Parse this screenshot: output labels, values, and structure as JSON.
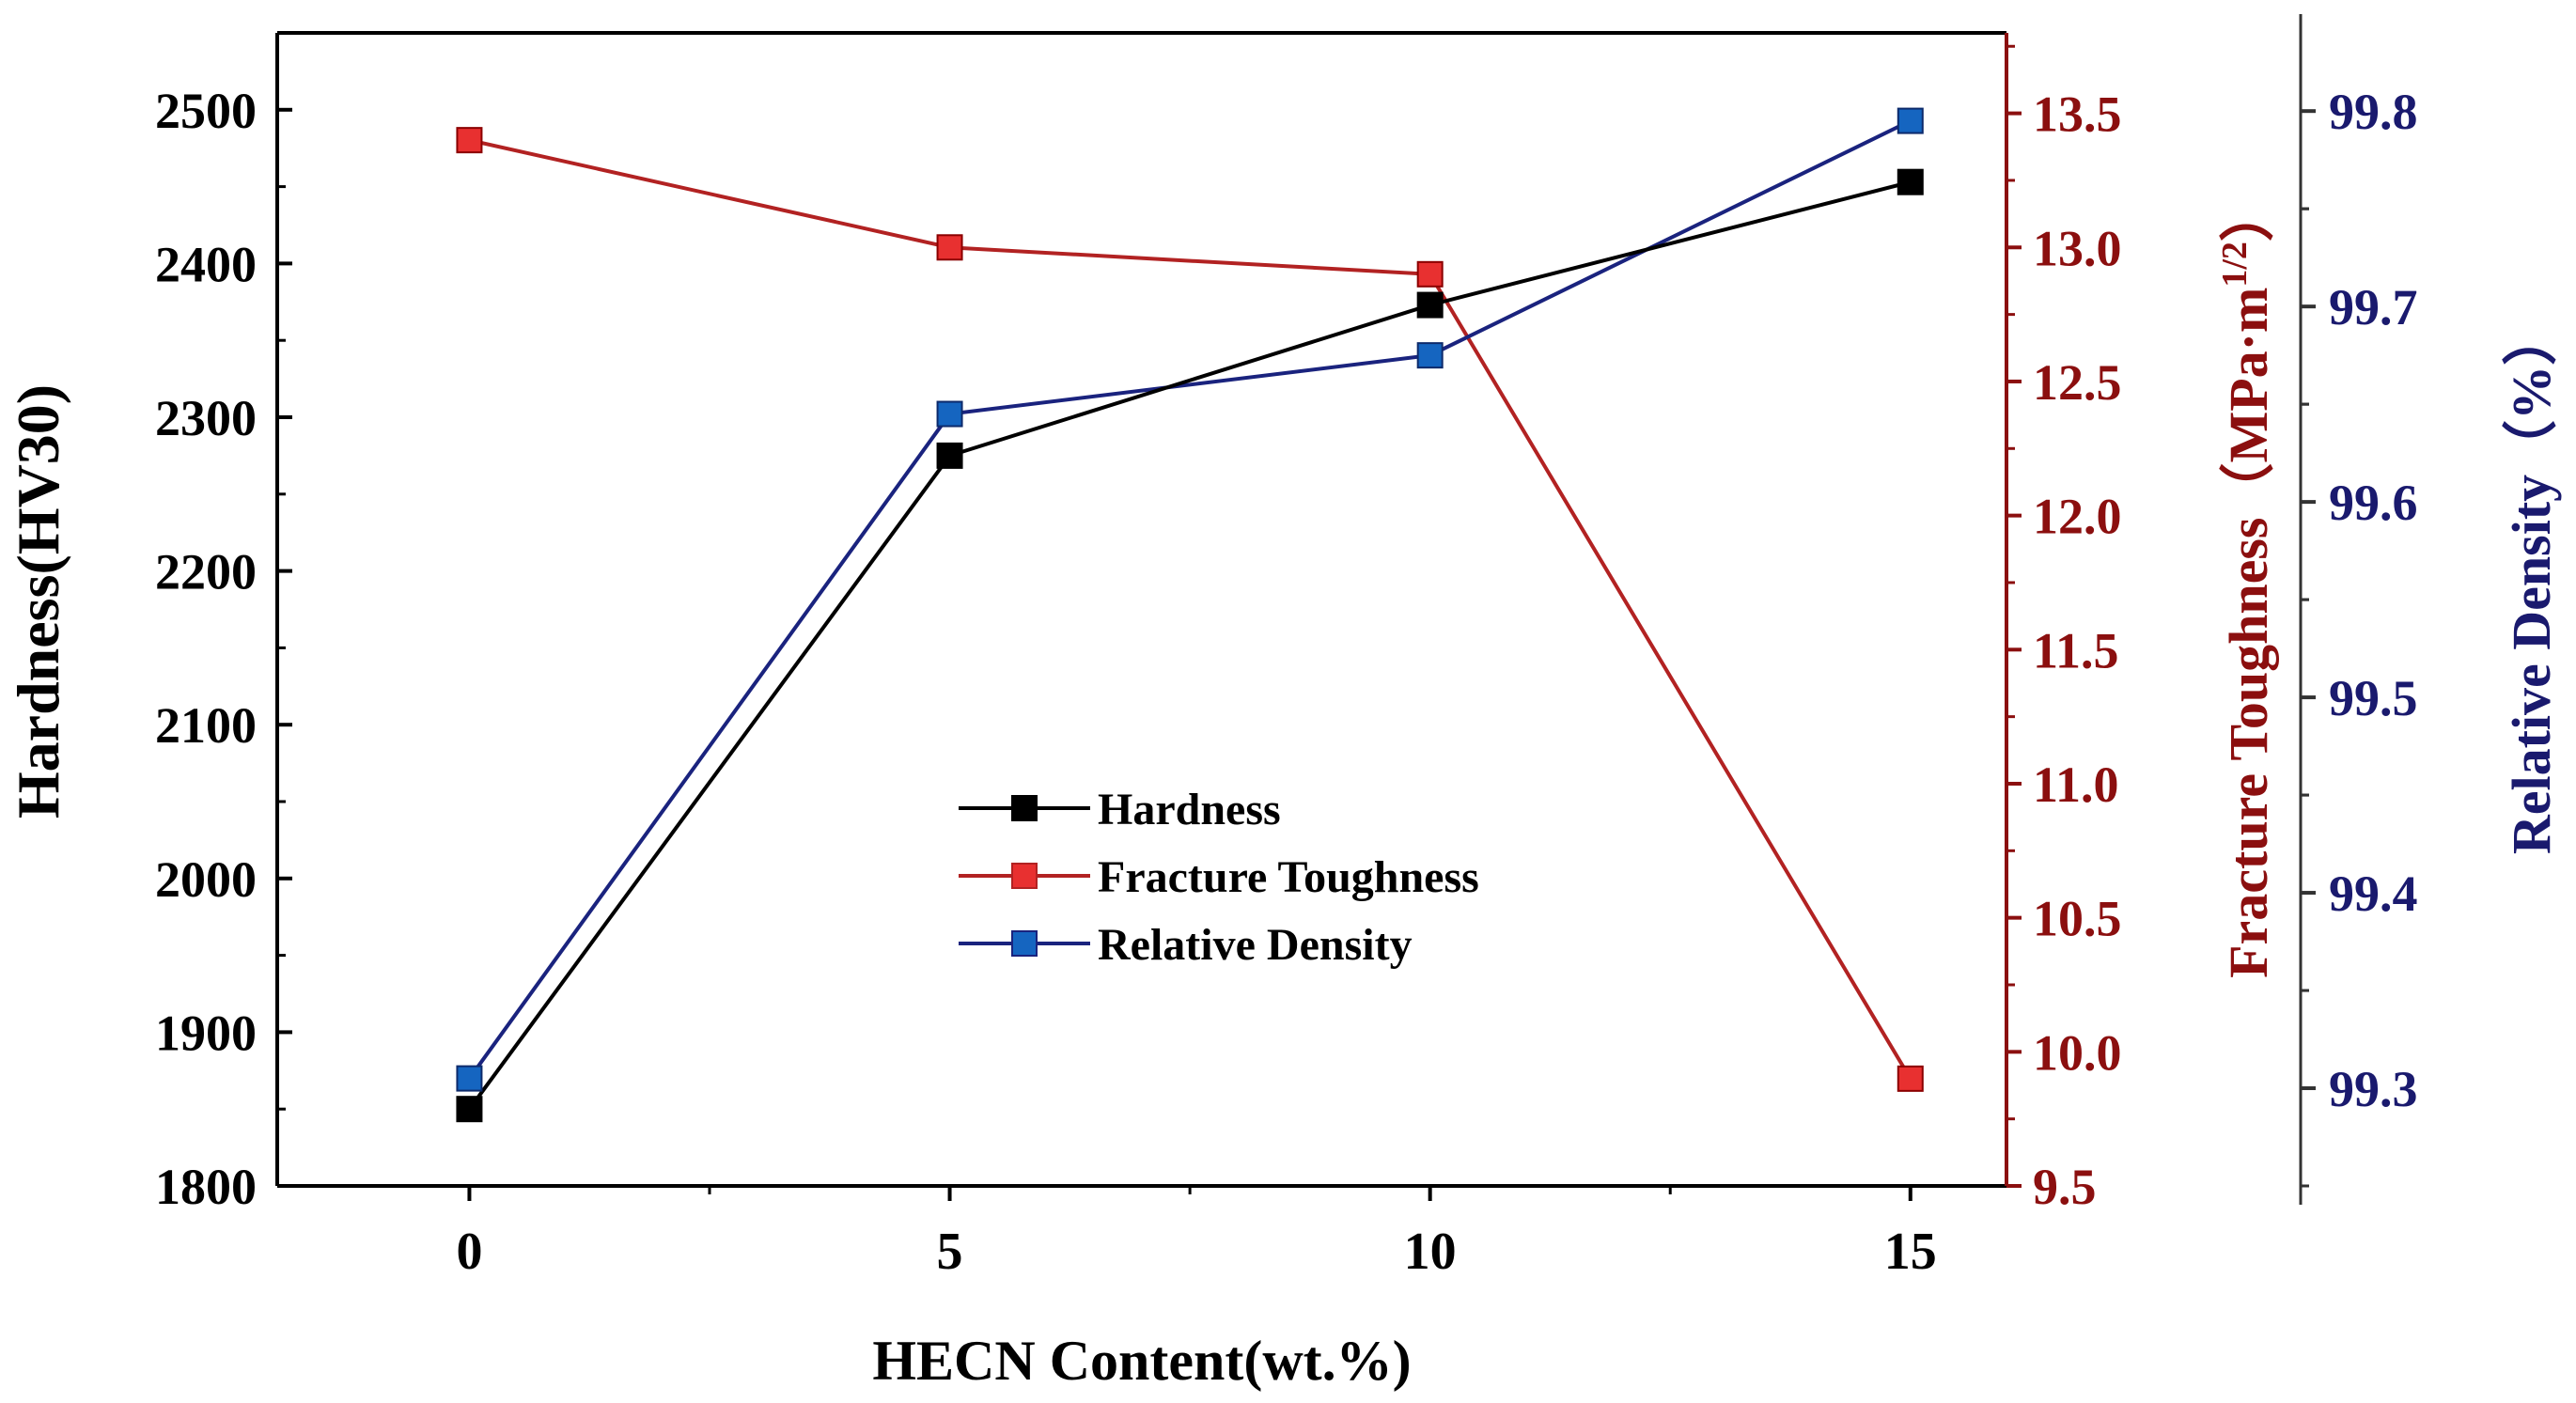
{
  "chart_data": {
    "type": "line",
    "x": [
      0,
      5,
      10,
      15
    ],
    "xlabel": "HECN Content(wt.%)",
    "xlim": [
      -2,
      16
    ],
    "xticks": [
      0,
      5,
      10,
      15
    ],
    "grid": false,
    "legend_position": "center",
    "axes": {
      "left": {
        "label": "Hardness(HV30)",
        "ylim": [
          1800,
          2550
        ],
        "ticks": [
          1800,
          1900,
          2000,
          2100,
          2200,
          2300,
          2400,
          2500
        ],
        "color": "#000000"
      },
      "right1": {
        "label_main": "Fracture Toughness（MPa·m",
        "label_sup": "1/2",
        "label_end": "）",
        "ylim": [
          9.5,
          13.8
        ],
        "ticks": [
          "9.5",
          "10.0",
          "10.5",
          "11.0",
          "11.5",
          "12.0",
          "12.5",
          "13.0",
          "13.5"
        ],
        "color": "#8b0f0f"
      },
      "right2": {
        "label": "Relative Density（%）",
        "ylim": [
          99.25,
          99.84
        ],
        "ticks": [
          "99.3",
          "99.4",
          "99.5",
          "99.6",
          "99.7",
          "99.8"
        ],
        "color": "#1a1a6e"
      }
    },
    "series": [
      {
        "name": "Hardness",
        "axis": "left",
        "values": [
          1850,
          2275,
          2373,
          2453
        ],
        "line_color": "#000000",
        "marker_color": "#000000"
      },
      {
        "name": "Fracture Toughness",
        "axis": "right1",
        "values": [
          13.4,
          13.0,
          12.9,
          9.9
        ],
        "line_color": "#b22222",
        "marker_color": "#e83030"
      },
      {
        "name": "Relative Density",
        "axis": "right2",
        "values": [
          99.305,
          99.645,
          99.675,
          99.795
        ],
        "line_color": "#1a237e",
        "marker_color": "#1565c0"
      }
    ]
  }
}
